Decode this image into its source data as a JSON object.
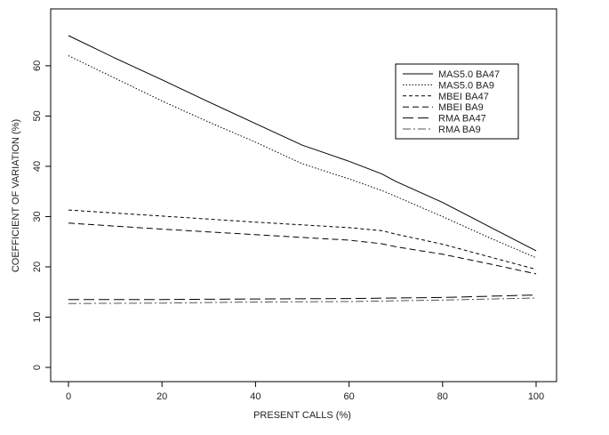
{
  "chart_data": {
    "type": "line",
    "title": "",
    "xlabel": "PRESENT CALLS (%)",
    "ylabel": "COEFFICIENT OF VARIATION (%)",
    "xlim": [
      0,
      100
    ],
    "ylim": [
      0,
      66
    ],
    "xticks": [
      0,
      20,
      40,
      60,
      80,
      100
    ],
    "yticks": [
      0,
      10,
      20,
      30,
      40,
      50,
      60
    ],
    "grid": false,
    "legend_position": "top-right",
    "series": [
      {
        "name": "MAS5.0 BA47",
        "dash": "solid",
        "color": "#000000",
        "x": [
          0,
          10,
          20,
          30,
          40,
          50,
          60,
          67,
          70,
          80,
          90,
          100
        ],
        "y": [
          66,
          61.5,
          57.2,
          52.8,
          48.5,
          44.2,
          41,
          38.5,
          37,
          32.8,
          28,
          23.2
        ]
      },
      {
        "name": "MAS5.0 BA9",
        "dash": "dotted",
        "color": "#000000",
        "x": [
          0,
          10,
          20,
          30,
          40,
          50,
          60,
          67,
          70,
          80,
          90,
          100
        ],
        "y": [
          62,
          57.5,
          53,
          48.8,
          44.8,
          40.5,
          37.5,
          35.2,
          34,
          30,
          25.8,
          21.8
        ]
      },
      {
        "name": "MBEI BA47",
        "dash": "short-dash",
        "color": "#000000",
        "x": [
          0,
          20,
          40,
          60,
          67,
          70,
          80,
          90,
          100
        ],
        "y": [
          31.3,
          30.1,
          28.9,
          27.8,
          27.2,
          26.5,
          24.5,
          22,
          19.5
        ]
      },
      {
        "name": "MBEI BA9",
        "dash": "medium-dash",
        "color": "#000000",
        "x": [
          0,
          20,
          40,
          60,
          67,
          70,
          80,
          90,
          100
        ],
        "y": [
          28.7,
          27.5,
          26.4,
          25.3,
          24.6,
          24,
          22.5,
          20.6,
          18.6
        ]
      },
      {
        "name": "RMA BA47",
        "dash": "long-dash",
        "color": "#000000",
        "x": [
          0,
          20,
          40,
          60,
          80,
          100
        ],
        "y": [
          13.5,
          13.5,
          13.6,
          13.7,
          13.9,
          14.4
        ]
      },
      {
        "name": "RMA BA9",
        "dash": "dash-dot",
        "color": "#555555",
        "x": [
          0,
          20,
          40,
          60,
          80,
          100
        ],
        "y": [
          12.7,
          12.8,
          13,
          13.1,
          13.4,
          13.8
        ]
      }
    ]
  }
}
